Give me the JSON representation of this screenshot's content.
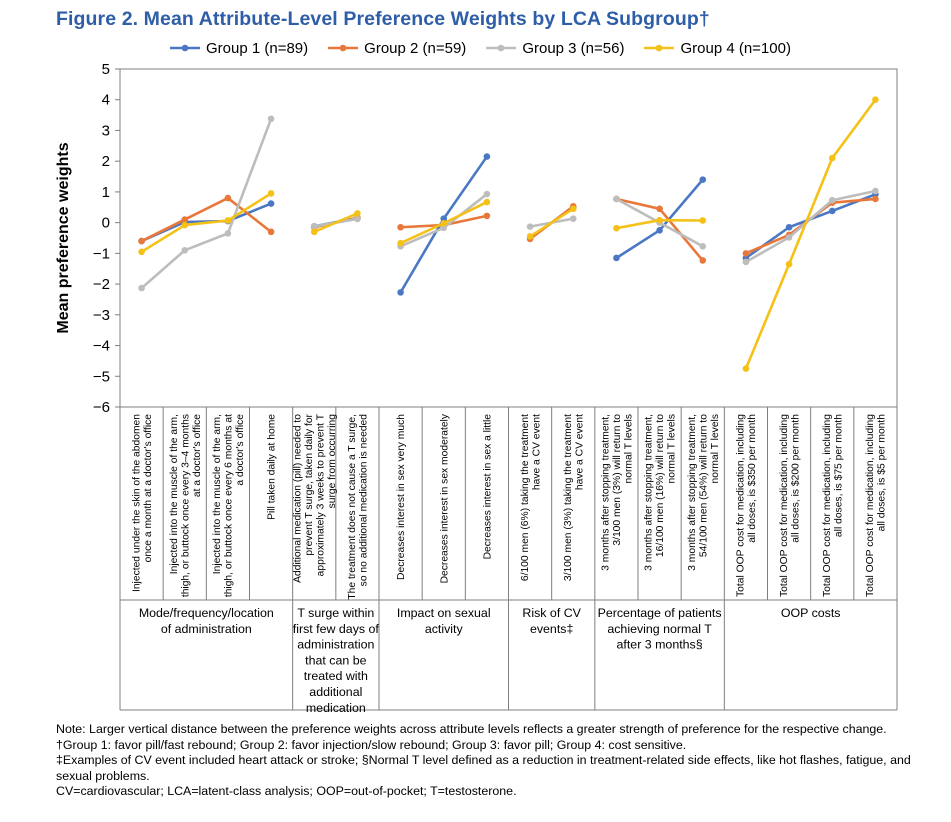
{
  "title": "Figure 2. Mean Attribute-Level Preference Weights by LCA Subgroup†",
  "chart_data": {
    "type": "line",
    "ylabel": "Mean preference weights",
    "ylim": [
      -6,
      5
    ],
    "yticks": [
      "5",
      "4",
      "3",
      "2",
      "1",
      "0",
      "−1",
      "−2",
      "−3",
      "−4",
      "−5",
      "−6"
    ],
    "categories": [
      [
        "Injected under the skin of the abdomen",
        "once a month at a doctor's office"
      ],
      [
        "Injected into the muscle of the arm,",
        "thigh, or buttock once every 3–4 months",
        "at a doctor's office"
      ],
      [
        "Injected into the muscle of the arm,",
        "thigh, or buttock once every 6 months at",
        "a doctor's office"
      ],
      [
        "Pill taken daily at home"
      ],
      [
        "Additional medication (pill) needed to",
        "prevent T surge, taken daily for",
        "approximately 3 weeks to prevent T",
        "surge from occurring"
      ],
      [
        "The treatment does not cause a T surge,",
        "so no additional medication is needed"
      ],
      [
        "Decreases interest in sex very much"
      ],
      [
        "Decreases interest in sex moderately"
      ],
      [
        "Decreases interest in sex a little"
      ],
      [
        "6/100 men (6%) taking the treatment",
        "have a CV event"
      ],
      [
        "3/100 men (3%) taking the treatment",
        "have a CV event"
      ],
      [
        "3 months after stopping treatment,",
        "3/100 men (3%) will return to",
        "normal T levels"
      ],
      [
        "3 months after stopping treatment,",
        "16/100 men (16%) will return to",
        "normal T levels"
      ],
      [
        "3 months after stopping treatment,",
        "54/100 men (54%) will return to",
        "normal T levels"
      ],
      [
        "Total OOP cost for medication, including",
        "all doses, is $350 per month"
      ],
      [
        "Total OOP cost for medication, including",
        "all doses, is $200 per month"
      ],
      [
        "Total OOP cost for medication, including",
        "all doses, is $75 per month"
      ],
      [
        "Total OOP cost for medication, including",
        "all doses, is $5 per month"
      ]
    ],
    "groups": [
      {
        "label": [
          "Mode/frequency/location",
          "of administration"
        ],
        "count": 4
      },
      {
        "label": [
          "T surge within",
          "first few days of",
          "administration",
          "that can be",
          "treated with",
          "additional",
          "medication"
        ],
        "count": 2
      },
      {
        "label": [
          "Impact on sexual",
          "activity"
        ],
        "count": 3
      },
      {
        "label": [
          "Risk of CV",
          "events‡"
        ],
        "count": 2
      },
      {
        "label": [
          "Percentage of patients",
          "achieving normal T",
          "after 3 months§"
        ],
        "count": 3
      },
      {
        "label": [
          "OOP costs"
        ],
        "count": 4
      }
    ],
    "series": [
      {
        "name": "Group 1 (n=89)",
        "color": "#4a78c4",
        "values": [
          -0.6,
          0.02,
          0.05,
          0.62,
          -0.12,
          0.15,
          -2.27,
          0.13,
          2.15,
          -0.5,
          0.5,
          -1.15,
          -0.25,
          1.4,
          -1.15,
          -0.15,
          0.38,
          0.92
        ]
      },
      {
        "name": "Group 2 (n=59)",
        "color": "#e8773a",
        "values": [
          -0.6,
          0.1,
          0.8,
          -0.3,
          -0.15,
          0.15,
          -0.15,
          -0.08,
          0.22,
          -0.53,
          0.53,
          0.77,
          0.45,
          -1.23,
          -1.0,
          -0.4,
          0.65,
          0.77
        ]
      },
      {
        "name": "Group 3 (n=56)",
        "color": "#bdbdbd",
        "values": [
          -2.13,
          -0.9,
          -0.35,
          3.38,
          -0.12,
          0.12,
          -0.77,
          -0.17,
          0.93,
          -0.13,
          0.13,
          0.77,
          0.0,
          -0.77,
          -1.28,
          -0.48,
          0.73,
          1.03
        ]
      },
      {
        "name": "Group 4 (n=100)",
        "color": "#f5c116",
        "values": [
          -0.95,
          -0.08,
          0.07,
          0.95,
          -0.3,
          0.3,
          -0.67,
          -0.02,
          0.67,
          -0.45,
          0.45,
          -0.18,
          0.08,
          0.07,
          -4.75,
          -1.35,
          2.1,
          4.0
        ]
      }
    ]
  },
  "notes": [
    "Note: Larger vertical distance between the preference weights across attribute levels reflects a greater strength of preference for the respective change.",
    "†Group 1: favor pill/fast rebound; Group 2: favor injection/slow rebound; Group 3: favor pill; Group 4: cost sensitive.",
    "‡Examples of CV event included heart attack or stroke; §Normal T level defined as a reduction in treatment-related side effects, like hot flashes, fatigue, and sexual problems.",
    "CV=cardiovascular; LCA=latent-class analysis; OOP=out-of-pocket; T=testosterone."
  ]
}
